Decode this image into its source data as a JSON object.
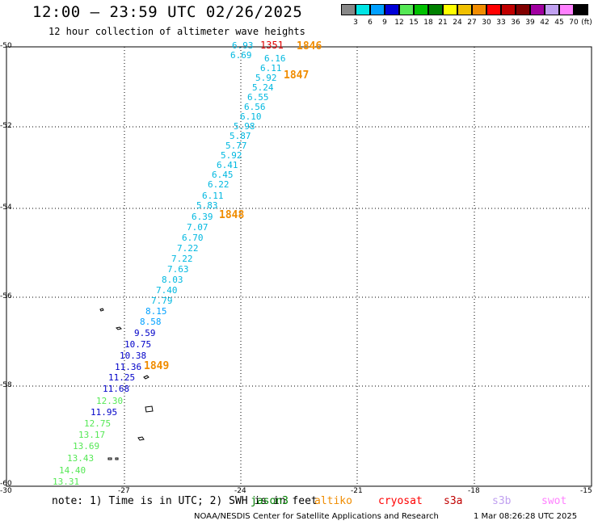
{
  "header": {
    "title": "12:00 – 23:59 UTC 02/26/2025",
    "subtitle": "12 hour collection of altimeter wave heights"
  },
  "colorbar": {
    "cells": [
      {
        "label": "3",
        "color": "#888888"
      },
      {
        "label": "6",
        "color": "#00e5e5"
      },
      {
        "label": "9",
        "color": "#00a0ff"
      },
      {
        "label": "12",
        "color": "#0000d8"
      },
      {
        "label": "15",
        "color": "#55e855"
      },
      {
        "label": "18",
        "color": "#00c000"
      },
      {
        "label": "21",
        "color": "#008000"
      },
      {
        "label": "24",
        "color": "#ffff00"
      },
      {
        "label": "27",
        "color": "#f0c000"
      },
      {
        "label": "30",
        "color": "#f08c00"
      },
      {
        "label": "33",
        "color": "#ff0000"
      },
      {
        "label": "36",
        "color": "#c00000"
      },
      {
        "label": "39",
        "color": "#800000"
      },
      {
        "label": "42",
        "color": "#a000a0"
      },
      {
        "label": "45",
        "color": "#c0a0f0"
      },
      {
        "label": "70",
        "color": "#ff80ff"
      },
      {
        "label": "",
        "color": "#000000"
      }
    ],
    "unit_label": "(ft)"
  },
  "axes": {
    "lat_ticks": [
      "-50",
      "-52",
      "-54",
      "-56",
      "-58",
      "-60"
    ],
    "lon_ticks": [
      "-30",
      "-27",
      "-24",
      "-21",
      "-18",
      "-15"
    ]
  },
  "swh_labels": [
    {
      "text": "6.93",
      "color": "#00b8e0"
    },
    {
      "text": "6.69",
      "color": "#00b8e0"
    },
    {
      "text": "6.16",
      "color": "#00b8e0"
    },
    {
      "text": "6.11",
      "color": "#00b8e0"
    },
    {
      "text": "5.92",
      "color": "#00b8e0"
    },
    {
      "text": "5.24",
      "color": "#00b8e0"
    },
    {
      "text": "6.55",
      "color": "#00b8e0"
    },
    {
      "text": "6.56",
      "color": "#00b8e0"
    },
    {
      "text": "6.10",
      "color": "#00b8e0"
    },
    {
      "text": "5.98",
      "color": "#00b8e0"
    },
    {
      "text": "5.87",
      "color": "#00b8e0"
    },
    {
      "text": "5.77",
      "color": "#00b8e0"
    },
    {
      "text": "5.92",
      "color": "#00b8e0"
    },
    {
      "text": "6.41",
      "color": "#00b8e0"
    },
    {
      "text": "6.45",
      "color": "#00b8e0"
    },
    {
      "text": "6.22",
      "color": "#00b8e0"
    },
    {
      "text": "6.11",
      "color": "#00b8e0"
    },
    {
      "text": "5.83",
      "color": "#00b8e0"
    },
    {
      "text": "6.39",
      "color": "#00b8e0"
    },
    {
      "text": "7.07",
      "color": "#00b8e0"
    },
    {
      "text": "6.70",
      "color": "#00b8e0"
    },
    {
      "text": "7.22",
      "color": "#00b8e0"
    },
    {
      "text": "7.22",
      "color": "#00b8e0"
    },
    {
      "text": "7.63",
      "color": "#00b8e0"
    },
    {
      "text": "8.03",
      "color": "#00b8e0"
    },
    {
      "text": "7.40",
      "color": "#00b8e0"
    },
    {
      "text": "7.79",
      "color": "#00b8e0"
    },
    {
      "text": "8.15",
      "color": "#00a0ff"
    },
    {
      "text": "8.58",
      "color": "#00a0ff"
    },
    {
      "text": "9.59",
      "color": "#0000c8"
    },
    {
      "text": "10.75",
      "color": "#0000c8"
    },
    {
      "text": "10.38",
      "color": "#0000c8"
    },
    {
      "text": "11.36",
      "color": "#0000c8"
    },
    {
      "text": "11.25",
      "color": "#0000c8"
    },
    {
      "text": "11.68",
      "color": "#0000c8"
    },
    {
      "text": "12.30",
      "color": "#55e855"
    },
    {
      "text": "11.95",
      "color": "#0000c8"
    },
    {
      "text": "12.75",
      "color": "#55e855"
    },
    {
      "text": "13.17",
      "color": "#55e855"
    },
    {
      "text": "13.69",
      "color": "#55e855"
    },
    {
      "text": "13.43",
      "color": "#55e855"
    },
    {
      "text": "14.40",
      "color": "#55e855"
    },
    {
      "text": "13.31",
      "color": "#55e855"
    }
  ],
  "red_label": {
    "text": "1351",
    "color": "#e00000"
  },
  "hour_labels": [
    "1846",
    "1847",
    "1848",
    "1849"
  ],
  "note": "note: 1) Time is in UTC; 2) SWH is in feet",
  "satellites": [
    {
      "name": "jason3",
      "color": "#008000"
    },
    {
      "name": "altiko",
      "color": "#f08c00"
    },
    {
      "name": "cryosat",
      "color": "#ff0000"
    },
    {
      "name": "s3a",
      "color": "#c00000"
    },
    {
      "name": "s3b",
      "color": "#c0a0f0"
    },
    {
      "name": "swot",
      "color": "#ff80ff"
    }
  ],
  "footer": "NOAA/NESDIS Center for Satellite Applications and Research",
  "footer_date": "1 Mar 08:26:28 UTC 2025"
}
